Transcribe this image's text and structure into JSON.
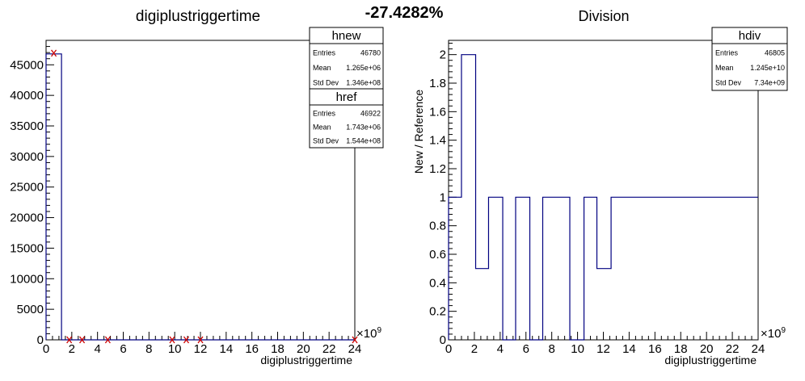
{
  "header": {
    "ratio": "-27.4282%"
  },
  "colors": {
    "hnew": "#000080",
    "href": "#cc0000",
    "hdiv": "#000080",
    "frame": "#000000"
  },
  "chart_data": [
    {
      "type": "histogram",
      "title": "digiplustriggertime",
      "xlabel": "digiplustriggertime",
      "ylabel": "",
      "x_exponent": "×10",
      "x_exponent_power": "9",
      "xlim": [
        0,
        24
      ],
      "ylim": [
        0,
        49000
      ],
      "x_ticks": [
        "0",
        "2",
        "4",
        "6",
        "8",
        "10",
        "12",
        "14",
        "16",
        "18",
        "20",
        "22",
        "24"
      ],
      "y_ticks": [
        "0",
        "5000",
        "10000",
        "15000",
        "20000",
        "25000",
        "30000",
        "35000",
        "40000",
        "45000"
      ],
      "y_tick_values": [
        0,
        5000,
        10000,
        15000,
        20000,
        25000,
        30000,
        35000,
        40000,
        45000
      ],
      "series": [
        {
          "name": "hnew",
          "style": "step",
          "edges": [
            0,
            1.2,
            24
          ],
          "values": [
            46780,
            0
          ]
        },
        {
          "name": "href",
          "style": "markers",
          "x": [
            0.6,
            1.8,
            2.8,
            4.8,
            9.8,
            10.9,
            12.0,
            24.0
          ],
          "y": [
            46900,
            0,
            0,
            0,
            0,
            0,
            0,
            0
          ]
        }
      ],
      "stats": [
        {
          "name": "hnew",
          "rows": [
            {
              "label": "Entries",
              "value": "46780"
            },
            {
              "label": "Mean",
              "value": "1.265e+06"
            },
            {
              "label": "Std Dev",
              "value": "1.346e+08"
            }
          ]
        },
        {
          "name": "href",
          "rows": [
            {
              "label": "Entries",
              "value": "46922"
            },
            {
              "label": "Mean",
              "value": "1.743e+06"
            },
            {
              "label": "Std Dev",
              "value": "1.544e+08"
            }
          ]
        }
      ]
    },
    {
      "type": "histogram",
      "title": "Division",
      "xlabel": "digiplustriggertime",
      "ylabel": "New / Reference",
      "x_exponent": "×10",
      "x_exponent_power": "9",
      "xlim": [
        0,
        24
      ],
      "ylim": [
        0,
        2.1
      ],
      "x_ticks": [
        "0",
        "2",
        "4",
        "6",
        "8",
        "10",
        "12",
        "14",
        "16",
        "18",
        "20",
        "22",
        "24"
      ],
      "y_ticks": [
        "0",
        "0.2",
        "0.4",
        "0.6",
        "0.8",
        "1",
        "1.2",
        "1.4",
        "1.6",
        "1.8",
        "2"
      ],
      "y_tick_values": [
        0,
        0.2,
        0.4,
        0.6,
        0.8,
        1,
        1.2,
        1.4,
        1.6,
        1.8,
        2
      ],
      "series": [
        {
          "name": "hdiv",
          "style": "step",
          "edges": [
            0,
            1.0,
            2.1,
            3.1,
            4.2,
            5.2,
            6.3,
            7.3,
            8.4,
            9.4,
            10.5,
            11.5,
            12.6,
            24.0
          ],
          "values": [
            1,
            2,
            0.5,
            1,
            0,
            1,
            0,
            1,
            1,
            0,
            1,
            0.5,
            1
          ]
        }
      ],
      "stats": [
        {
          "name": "hdiv",
          "rows": [
            {
              "label": "Entries",
              "value": "46805"
            },
            {
              "label": "Mean",
              "value": "1.245e+10"
            },
            {
              "label": "Std Dev",
              "value": "7.34e+09"
            }
          ]
        }
      ]
    }
  ]
}
